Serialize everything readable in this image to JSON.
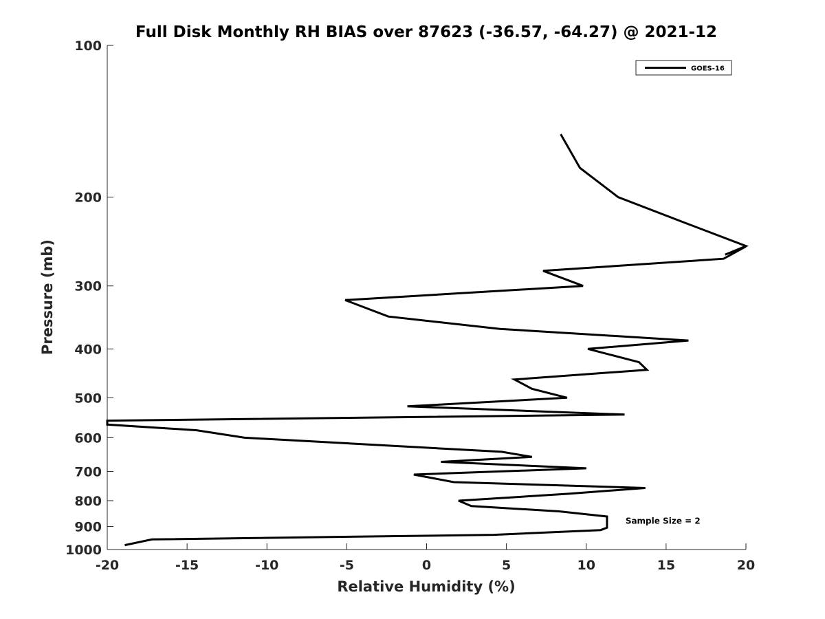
{
  "chart_data": {
    "type": "line",
    "title": "Full Disk Monthly RH BIAS over 87623 (-36.57, -64.27) @ 2021-12",
    "xlabel": "Relative Humidity (%)",
    "ylabel": "Pressure (mb)",
    "xlim": [
      -20,
      20
    ],
    "ylim": [
      100,
      1000
    ],
    "y_scale": "log",
    "y_reversed": true,
    "grid": false,
    "legend_position": "top-right",
    "x_ticks": [
      -20,
      -15,
      -10,
      -5,
      0,
      5,
      10,
      15,
      20
    ],
    "x_tick_labels": [
      "-20",
      "-15",
      "-10",
      "-5",
      "0",
      "5",
      "10",
      "15",
      "20"
    ],
    "y_ticks": [
      100,
      200,
      300,
      400,
      500,
      600,
      700,
      800,
      900,
      1000
    ],
    "y_tick_labels": [
      "100",
      "200",
      "300",
      "400",
      "500",
      "600",
      "700",
      "800",
      "900",
      "1000"
    ],
    "series": [
      {
        "name": "GOES-16",
        "color": "#000000",
        "points": [
          {
            "x": 8.4,
            "p": 150
          },
          {
            "x": 9.6,
            "p": 175
          },
          {
            "x": 12.0,
            "p": 200
          },
          {
            "x": 16.2,
            "p": 225
          },
          {
            "x": 20.0,
            "p": 250
          },
          {
            "x": 18.7,
            "p": 260
          },
          {
            "x": 20.0,
            "p": 250.5
          },
          {
            "x": 18.6,
            "p": 265
          },
          {
            "x": 7.3,
            "p": 280
          },
          {
            "x": 9.8,
            "p": 300
          },
          {
            "x": -5.1,
            "p": 320
          },
          {
            "x": -2.4,
            "p": 345
          },
          {
            "x": 4.6,
            "p": 365
          },
          {
            "x": 16.4,
            "p": 385
          },
          {
            "x": 10.1,
            "p": 400
          },
          {
            "x": 13.3,
            "p": 425
          },
          {
            "x": 13.8,
            "p": 440
          },
          {
            "x": 5.5,
            "p": 460
          },
          {
            "x": 6.6,
            "p": 480
          },
          {
            "x": 8.8,
            "p": 500
          },
          {
            "x": -1.2,
            "p": 520
          },
          {
            "x": 12.4,
            "p": 540
          },
          {
            "x": -20.0,
            "p": 555
          },
          {
            "x": -20.0,
            "p": 565
          },
          {
            "x": -14.4,
            "p": 580
          },
          {
            "x": -11.4,
            "p": 600
          },
          {
            "x": 4.7,
            "p": 640
          },
          {
            "x": 6.6,
            "p": 655
          },
          {
            "x": 0.9,
            "p": 670
          },
          {
            "x": 10.0,
            "p": 690
          },
          {
            "x": -0.8,
            "p": 710
          },
          {
            "x": 1.7,
            "p": 735
          },
          {
            "x": 13.7,
            "p": 755
          },
          {
            "x": 8.9,
            "p": 775
          },
          {
            "x": 2.0,
            "p": 800
          },
          {
            "x": 2.8,
            "p": 820
          },
          {
            "x": 8.3,
            "p": 840
          },
          {
            "x": 11.3,
            "p": 860
          },
          {
            "x": 11.3,
            "p": 890
          },
          {
            "x": 11.3,
            "p": 905
          },
          {
            "x": 10.9,
            "p": 915
          },
          {
            "x": 4.2,
            "p": 935
          },
          {
            "x": -17.2,
            "p": 955
          },
          {
            "x": -18.9,
            "p": 980
          }
        ]
      }
    ],
    "annotations": [
      {
        "text": "Sample Size = 2",
        "x": 12.5,
        "p": 900
      }
    ]
  }
}
